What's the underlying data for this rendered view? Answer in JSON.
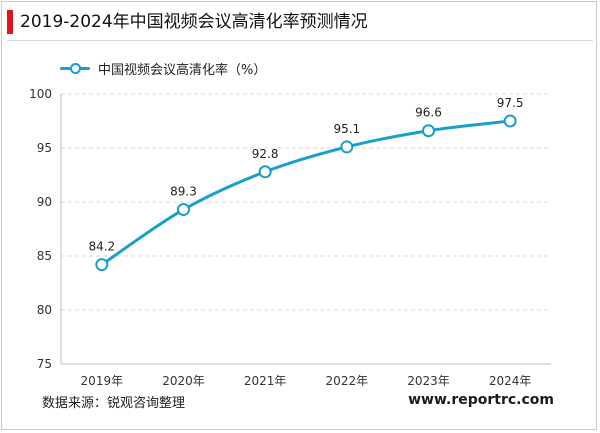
{
  "title": "2019-2024年中国视频会议高清化率预测情况",
  "legend_label": "中国视频会议高清化率（%）",
  "source": "数据来源：锐观咨询整理",
  "website": "www.reportrc.com",
  "colors": {
    "line": "#1a9fc9",
    "title_accent": "#e0141e"
  },
  "chart_data": {
    "type": "line",
    "title": "2019-2024年中国视频会议高清化率预测情况",
    "categories": [
      "2019年",
      "2020年",
      "2021年",
      "2022年",
      "2023年",
      "2024年"
    ],
    "series": [
      {
        "name": "中国视频会议高清化率（%）",
        "values": [
          84.2,
          89.3,
          92.8,
          95.1,
          96.6,
          97.5
        ]
      }
    ],
    "value_labels": [
      "84.2",
      "89.3",
      "92.8",
      "95.1",
      "96.6",
      "97.5"
    ],
    "ylim": [
      75,
      100
    ],
    "yticks": [
      "75",
      "80",
      "85",
      "90",
      "95",
      "100"
    ],
    "grid": "horizontal-dashed",
    "legend_position": "top-left",
    "line_style": "smooth"
  }
}
